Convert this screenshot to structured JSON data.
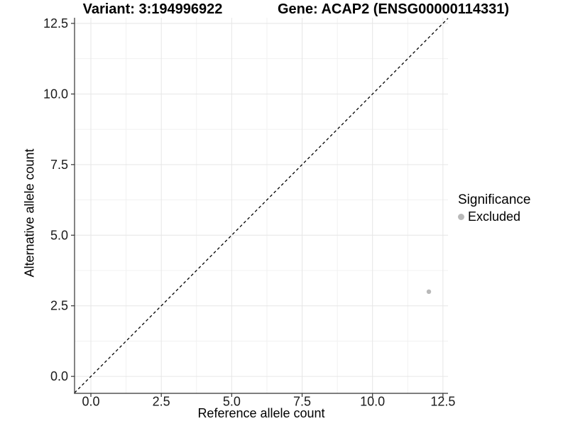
{
  "chart_data": {
    "type": "scatter",
    "title_left": "Variant: 3:194996922",
    "title_right": "Gene: ACAP2 (ENSG00000114331)",
    "xlabel": "Reference allele count",
    "ylabel": "Alternative allele count",
    "xlim": [
      -0.58,
      12.68
    ],
    "ylim": [
      -0.6,
      12.7
    ],
    "x_ticks": [
      0,
      2.5,
      5,
      7.5,
      10,
      12.5
    ],
    "x_tick_labels": [
      "0.0",
      "2.5",
      "5.0",
      "7.5",
      "10.0",
      "12.5"
    ],
    "y_ticks": [
      0,
      2.5,
      5,
      7.5,
      10,
      12.5
    ],
    "y_tick_labels": [
      "0.0",
      "2.5",
      "5.0",
      "7.5",
      "10.0",
      "12.5"
    ],
    "minor_ticks": [
      1.25,
      3.75,
      6.25,
      8.75,
      11.25
    ],
    "grid": "major+minor",
    "reference_line": {
      "type": "identity y=x",
      "style": "dashed",
      "color": "#000000"
    },
    "series": [
      {
        "name": "Excluded",
        "color": "#b9b9b9",
        "points": [
          {
            "x": 12,
            "y": 3
          }
        ]
      }
    ],
    "legend": {
      "title": "Significance",
      "position": "right",
      "entries": [
        {
          "label": "Excluded",
          "color": "#b9b9b9"
        }
      ]
    },
    "colors": {
      "grid_major": "#e6e6e6",
      "grid_minor": "#f1f1f1",
      "axis_line": "#333333",
      "tick_text": "#1a1a1a",
      "point": "#b9b9b9",
      "identity_line": "#000000"
    }
  }
}
